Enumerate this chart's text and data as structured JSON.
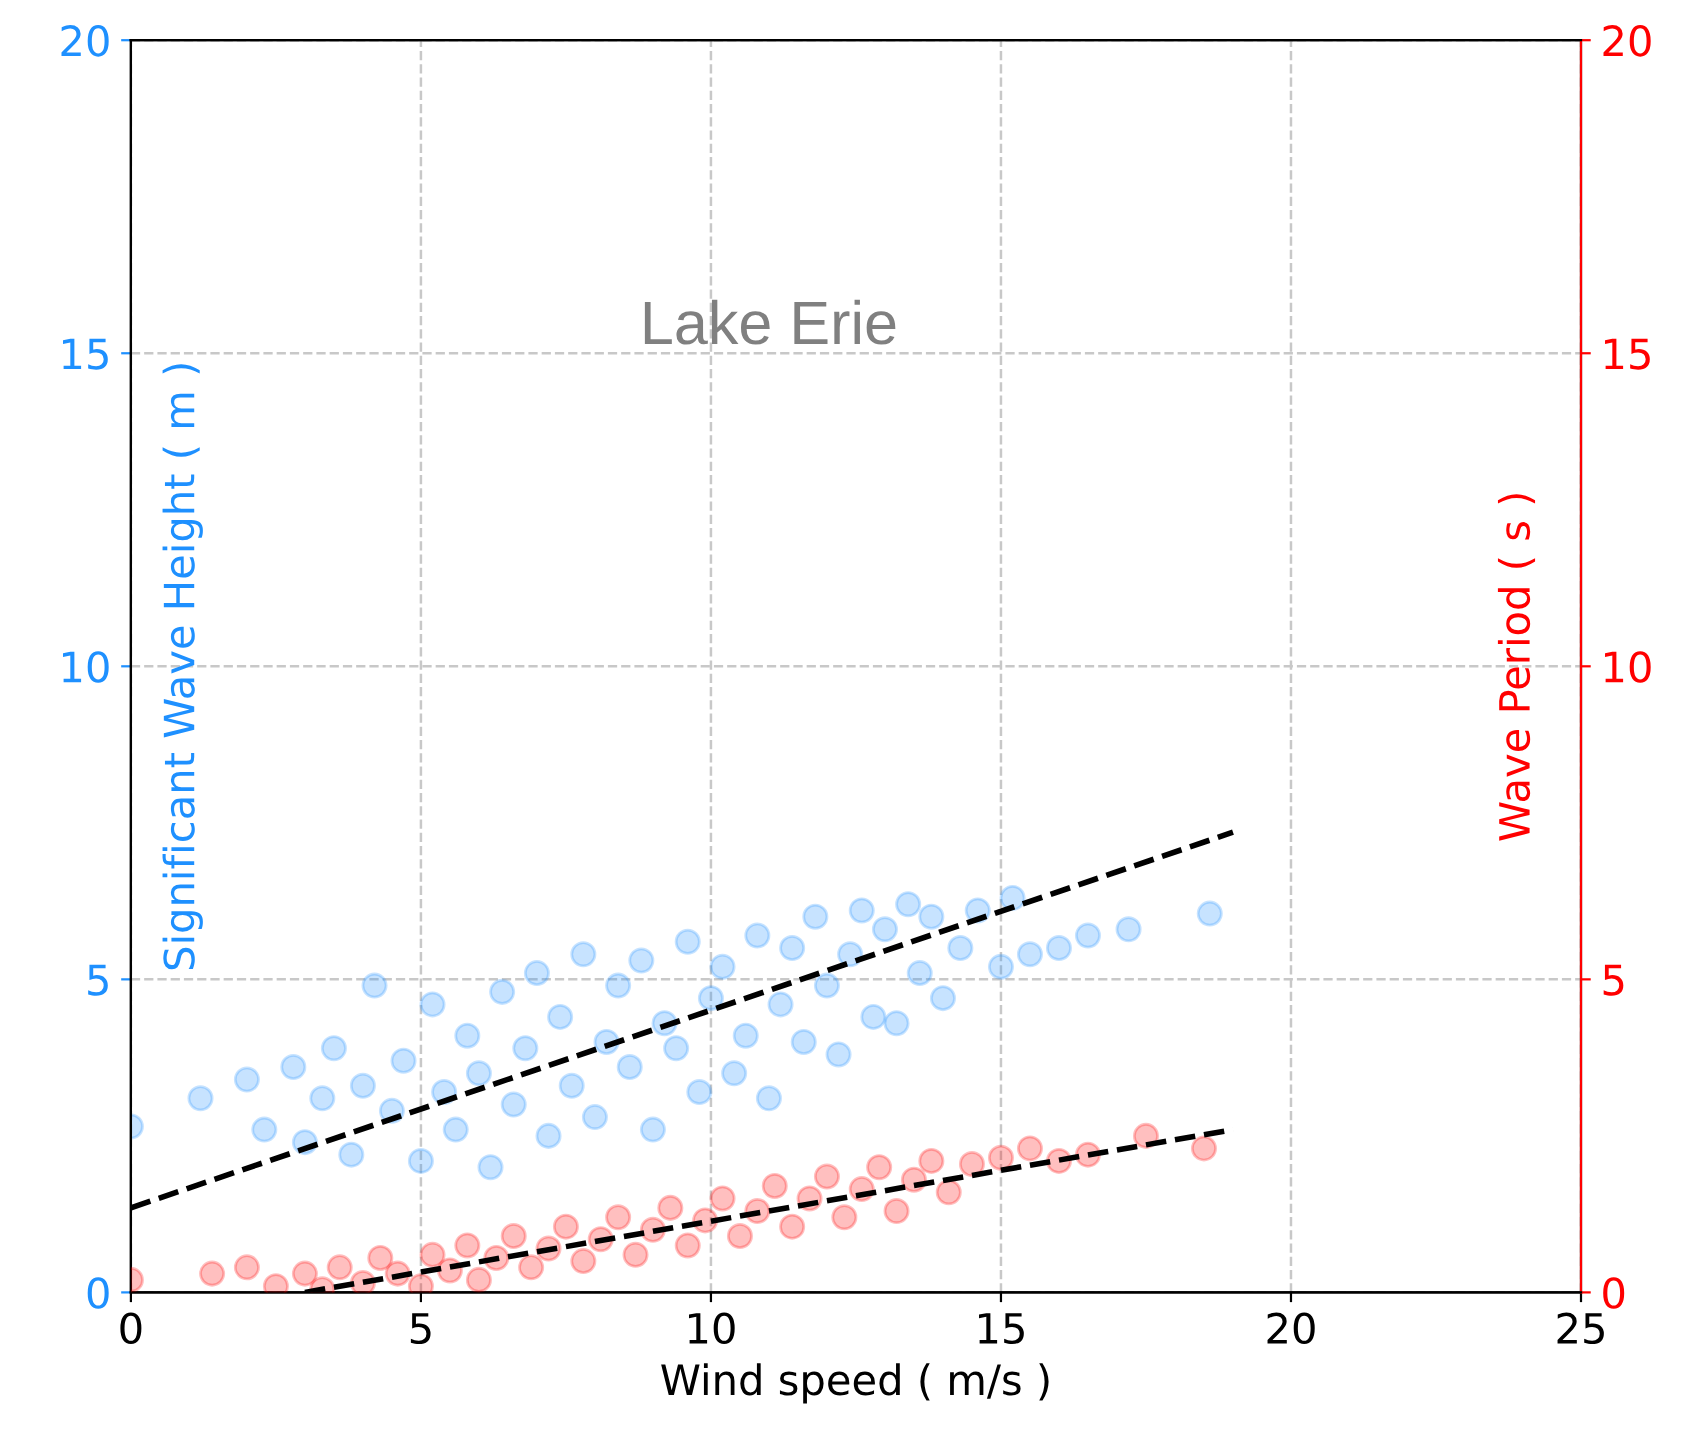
{
  "chart_data": {
    "type": "scatter",
    "title": "Lake Erie",
    "xlabel": "Wind speed ( m/s )",
    "ylabel": "Significant Wave Height ( m )",
    "y2label": "Wave Period ( s )",
    "xlim": [
      0,
      25
    ],
    "xticks": [
      0,
      5,
      10,
      15,
      20,
      25
    ],
    "ylim": [
      0,
      20
    ],
    "yticks": [
      0,
      5,
      10,
      15,
      20
    ],
    "y2lim": [
      0,
      20
    ],
    "y2ticks": [
      0,
      5,
      10,
      15,
      20
    ],
    "grid": true,
    "marker": "circle",
    "series": [
      {
        "color": "#1e90ff",
        "x": [
          0,
          1.2,
          2.0,
          2.3,
          2.8,
          3.0,
          3.3,
          3.5,
          3.8,
          4.0,
          4.2,
          4.5,
          4.7,
          5.0,
          5.2,
          5.4,
          5.6,
          5.8,
          6.0,
          6.2,
          6.4,
          6.6,
          6.8,
          7.0,
          7.2,
          7.4,
          7.6,
          7.8,
          8.0,
          8.2,
          8.4,
          8.6,
          8.8,
          9.0,
          9.2,
          9.4,
          9.6,
          9.8,
          10.0,
          10.2,
          10.4,
          10.6,
          10.8,
          11.0,
          11.2,
          11.4,
          11.6,
          11.8,
          12.0,
          12.2,
          12.4,
          12.6,
          12.8,
          13.0,
          13.2,
          13.4,
          13.6,
          13.8,
          14.0,
          14.3,
          14.6,
          15.0,
          15.2,
          15.5,
          16.0,
          16.5,
          17.2,
          18.6
        ],
        "values": [
          2.65,
          3.1,
          3.4,
          2.6,
          3.6,
          2.4,
          3.1,
          3.9,
          2.2,
          3.3,
          4.9,
          2.9,
          3.7,
          2.1,
          4.6,
          3.2,
          2.6,
          4.1,
          3.5,
          2.0,
          4.8,
          3.0,
          3.9,
          5.1,
          2.5,
          4.4,
          3.3,
          5.4,
          2.8,
          4.0,
          4.9,
          3.6,
          5.3,
          2.6,
          4.3,
          3.9,
          5.6,
          3.2,
          4.7,
          5.2,
          3.5,
          4.1,
          5.7,
          3.1,
          4.6,
          5.5,
          4.0,
          6.0,
          4.9,
          3.8,
          5.4,
          6.1,
          4.4,
          5.8,
          4.3,
          6.2,
          5.1,
          6.0,
          4.7,
          5.5,
          6.1,
          5.2,
          6.3,
          5.4,
          5.5,
          5.7,
          5.8,
          6.05
        ]
      },
      {
        "color": "#ff0000",
        "axis": "y2",
        "x": [
          0,
          1.4,
          2.0,
          2.5,
          3.0,
          3.3,
          3.6,
          4.0,
          4.3,
          4.6,
          5.0,
          5.2,
          5.5,
          5.8,
          6.0,
          6.3,
          6.6,
          6.9,
          7.2,
          7.5,
          7.8,
          8.1,
          8.4,
          8.7,
          9.0,
          9.3,
          9.6,
          9.9,
          10.2,
          10.5,
          10.8,
          11.1,
          11.4,
          11.7,
          12.0,
          12.3,
          12.6,
          12.9,
          13.2,
          13.5,
          13.8,
          14.1,
          14.5,
          15.0,
          15.5,
          16.0,
          16.5,
          17.5,
          18.5
        ],
        "values": [
          0.2,
          0.3,
          0.4,
          0.1,
          0.3,
          0.05,
          0.4,
          0.15,
          0.55,
          0.3,
          0.1,
          0.6,
          0.35,
          0.75,
          0.2,
          0.55,
          0.9,
          0.4,
          0.7,
          1.05,
          0.5,
          0.85,
          1.2,
          0.6,
          1.0,
          1.35,
          0.75,
          1.15,
          1.5,
          0.9,
          1.3,
          1.7,
          1.05,
          1.5,
          1.85,
          1.2,
          1.65,
          2.0,
          1.3,
          1.8,
          2.1,
          1.6,
          2.05,
          2.15,
          2.3,
          2.1,
          2.2,
          2.5,
          2.3
        ]
      },
      {
        "type": "line",
        "color": "#000000",
        "line_style": "dashed",
        "marker": "none",
        "x": [
          0,
          19
        ],
        "values": [
          1.35,
          7.35
        ]
      },
      {
        "type": "line",
        "color": "#000000",
        "line_style": "dashed",
        "marker": "none",
        "axis": "y2",
        "x": [
          3,
          19
        ],
        "values": [
          0,
          2.6
        ]
      }
    ]
  }
}
